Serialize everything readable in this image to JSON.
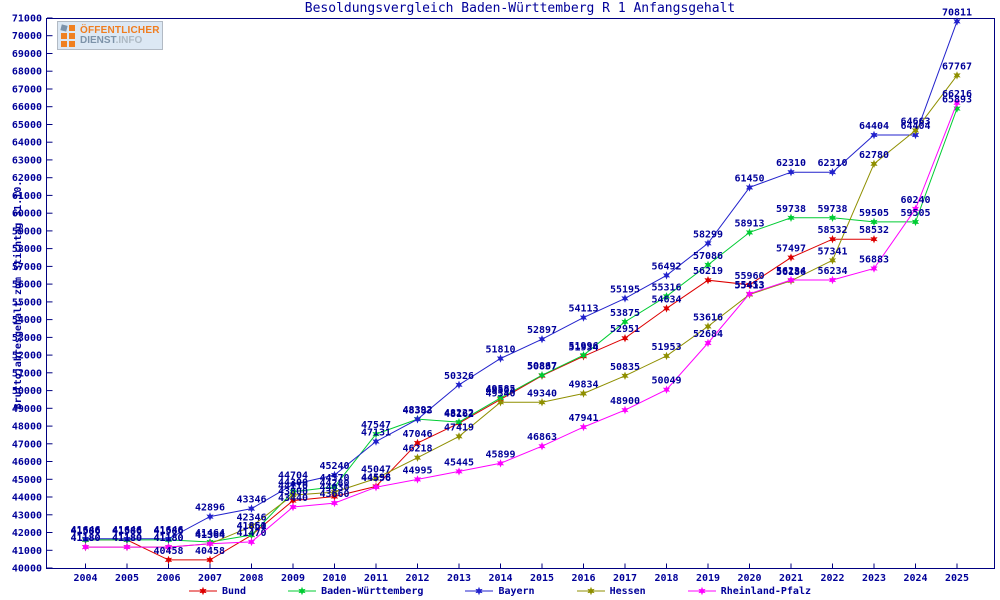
{
  "page": {
    "background": "#ffffff"
  },
  "logo": {
    "line1": "ÖFFENTLICHER",
    "line2a": "DIENST",
    "line2b": ".INFO"
  },
  "chart_data": {
    "type": "line",
    "title": "Besoldungsvergleich Baden-Württemberg R 1 Anfangsgehalt",
    "ylabel": "Bruttojahresgehalt zum Stichtag 31.10.",
    "xlabel": "",
    "ylim": [
      40000,
      71000
    ],
    "ytick_step": 1000,
    "grid": false,
    "legend_position": "bottom",
    "frame_color": "#000080",
    "text_color": "#000099",
    "point_labels": "values",
    "categories": [
      2004,
      2005,
      2006,
      2007,
      2008,
      2009,
      2010,
      2011,
      2012,
      2013,
      2014,
      2015,
      2016,
      2017,
      2018,
      2019,
      2020,
      2021,
      2022,
      2023,
      2024,
      2025
    ],
    "series": [
      {
        "name": "Bund",
        "color": "#dd0000",
        "values": [
          41586,
          41586,
          40458,
          40458,
          41851,
          43800,
          44030,
          44598,
          47046,
          48162,
          49504,
          50837,
          51934,
          52951,
          54634,
          56219,
          55960,
          57497,
          58532,
          58532,
          null,
          null
        ]
      },
      {
        "name": "Baden-Württemberg",
        "color": "#00cc33",
        "values": [
          41586,
          41586,
          41586,
          41464,
          41860,
          44300,
          44570,
          47547,
          48392,
          48222,
          49585,
          50867,
          51996,
          53875,
          55316,
          57086,
          58913,
          59738,
          59738,
          59505,
          59505,
          65893
        ]
      },
      {
        "name": "Bayern",
        "color": "#2222cc",
        "values": [
          41646,
          41646,
          41646,
          42896,
          43346,
          44704,
          45240,
          47131,
          48383,
          50326,
          51810,
          52897,
          54113,
          55195,
          56492,
          58299,
          61450,
          62310,
          62310,
          64404,
          64404,
          70811
        ]
      },
      {
        "name": "Hessen",
        "color": "#8f8f00",
        "values": [
          41180,
          41180,
          41180,
          41364,
          42346,
          44110,
          44280,
          45047,
          46218,
          47419,
          49340,
          49340,
          49834,
          50835,
          51953,
          53616,
          55413,
          56186,
          57341,
          62780,
          64663,
          67767
        ]
      },
      {
        "name": "Rheinland-Pfalz",
        "color": "#ff00ff",
        "values": [
          41180,
          41180,
          41180,
          41364,
          41470,
          43440,
          43660,
          44556,
          44995,
          45445,
          45899,
          46863,
          47941,
          48900,
          50049,
          52684,
          55453,
          56234,
          56234,
          56883,
          60240,
          66216
        ]
      }
    ]
  }
}
